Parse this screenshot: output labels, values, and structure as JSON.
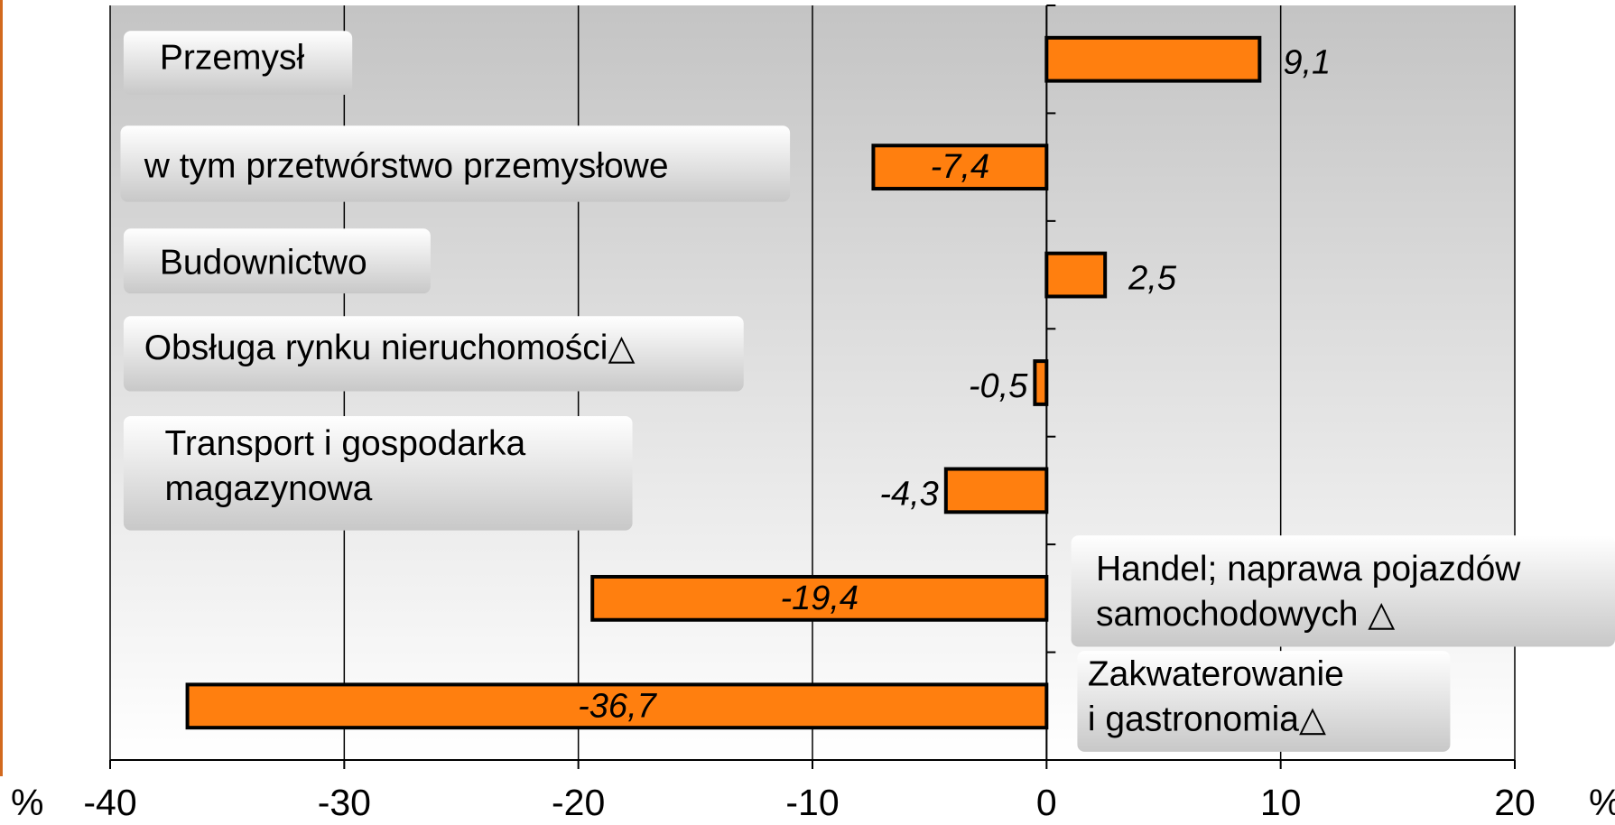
{
  "chart_data": {
    "type": "barh",
    "categories": [
      "Przemysł",
      "w tym przetwórstwo przemysłowe",
      "Budownictwo",
      "Obsługa rynku nieruchomości△",
      "Transport i gospodarka\nmagazynowa",
      "Handel; naprawa pojazdów\nsamochodowych △",
      "Zakwaterowanie\ni gastronomia△"
    ],
    "values": [
      9.1,
      -7.4,
      2.5,
      -0.5,
      -4.3,
      -19.4,
      -36.7
    ],
    "value_labels": [
      "9,1",
      "-7,4",
      "2,5",
      "-0,5",
      "-4,3",
      "-19,4",
      "-36,7"
    ],
    "color": "#ff7f0f",
    "xlim": [
      -40,
      20
    ],
    "xticks": [
      -40,
      -30,
      -20,
      -10,
      0,
      10,
      20
    ],
    "xlabel": "%",
    "grid": true
  }
}
